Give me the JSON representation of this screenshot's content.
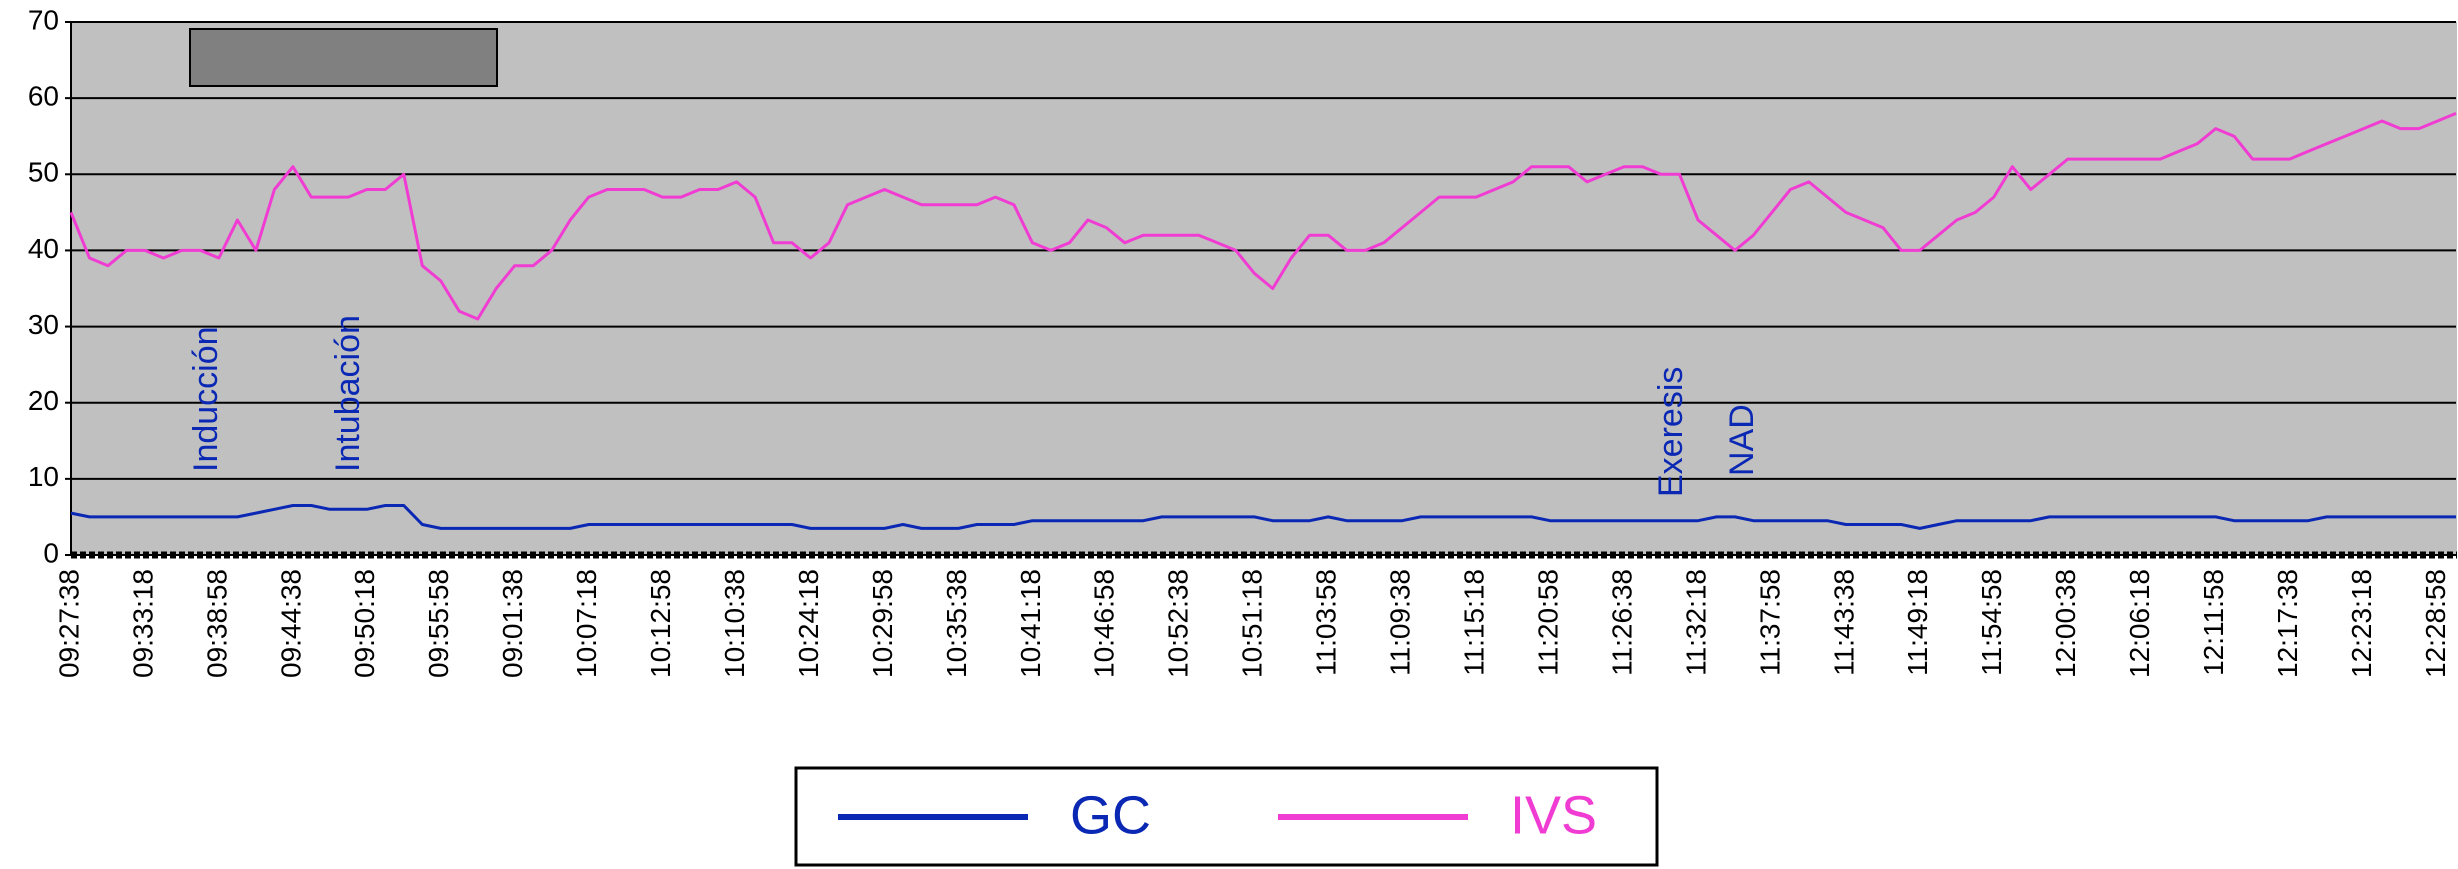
{
  "chart_data": {
    "type": "line",
    "categories": [
      "09:27:38",
      null,
      null,
      null,
      "09:33:18",
      null,
      null,
      null,
      "09:38:58",
      null,
      null,
      null,
      "09:44:38",
      null,
      null,
      null,
      "09:50:18",
      null,
      null,
      null,
      "09:55:58",
      null,
      null,
      null,
      "09:01:38",
      null,
      null,
      null,
      "10:07:18",
      null,
      null,
      null,
      "10:12:58",
      null,
      null,
      null,
      "10:10:38",
      null,
      null,
      null,
      "10:24:18",
      null,
      null,
      null,
      "10:29:58",
      null,
      null,
      null,
      "10:35:38",
      null,
      null,
      null,
      "10:41:18",
      null,
      null,
      null,
      "10:46:58",
      null,
      null,
      null,
      "10:52:38",
      null,
      null,
      null,
      "10:51:18",
      null,
      null,
      null,
      "11:03:58",
      null,
      null,
      null,
      "11:09:38",
      null,
      null,
      null,
      "11:15:18",
      null,
      null,
      null,
      "11:20:58",
      null,
      null,
      null,
      "11:26:38",
      null,
      null,
      null,
      "11:32:18",
      null,
      null,
      null,
      "11:37:58",
      null,
      null,
      null,
      "11:43:38",
      null,
      null,
      null,
      "11:49:18",
      null,
      null,
      null,
      "11:54:58",
      null,
      null,
      null,
      "12:00:38",
      null,
      null,
      null,
      "12:06:18",
      null,
      null,
      null,
      "12:11:58",
      null,
      null,
      null,
      "12:17:38",
      null,
      null,
      null,
      "12:23:18",
      null,
      null,
      null,
      "12:28:58",
      null
    ],
    "series": [
      {
        "name": "GC",
        "color": "#0a28b4",
        "values": [
          5.5,
          5,
          5,
          5,
          5,
          5,
          5,
          5,
          5,
          5,
          5.5,
          6,
          6.5,
          6.5,
          6,
          6,
          6,
          6.5,
          6.5,
          4,
          3.5,
          3.5,
          3.5,
          3.5,
          3.5,
          3.5,
          3.5,
          3.5,
          4,
          4,
          4,
          4,
          4,
          4,
          4,
          4,
          4,
          4,
          4,
          4,
          3.5,
          3.5,
          3.5,
          3.5,
          3.5,
          4,
          3.5,
          3.5,
          3.5,
          4,
          4,
          4,
          4.5,
          4.5,
          4.5,
          4.5,
          4.5,
          4.5,
          4.5,
          5,
          5,
          5,
          5,
          5,
          5,
          4.5,
          4.5,
          4.5,
          5,
          4.5,
          4.5,
          4.5,
          4.5,
          5,
          5,
          5,
          5,
          5,
          5,
          5,
          4.5,
          4.5,
          4.5,
          4.5,
          4.5,
          4.5,
          4.5,
          4.5,
          4.5,
          5,
          5,
          4.5,
          4.5,
          4.5,
          4.5,
          4.5,
          4,
          4,
          4,
          4,
          3.5,
          4,
          4.5,
          4.5,
          4.5,
          4.5,
          4.5,
          5,
          5,
          5,
          5,
          5,
          5,
          5,
          5,
          5,
          5,
          4.5,
          4.5,
          4.5,
          4.5,
          4.5,
          5,
          5,
          5,
          5,
          5,
          5,
          5,
          5
        ]
      },
      {
        "name": "IVS",
        "color": "#f03cd2",
        "values": [
          45,
          39,
          38,
          40,
          40,
          39,
          40,
          40,
          39,
          44,
          40,
          48,
          51,
          47,
          47,
          47,
          48,
          48,
          50,
          38,
          36,
          32,
          31,
          35,
          38,
          38,
          40,
          44,
          47,
          48,
          48,
          48,
          47,
          47,
          48,
          48,
          49,
          47,
          41,
          41,
          39,
          41,
          46,
          47,
          48,
          47,
          46,
          46,
          46,
          46,
          47,
          46,
          41,
          40,
          41,
          44,
          43,
          41,
          42,
          42,
          42,
          42,
          41,
          40,
          37,
          35,
          39,
          42,
          42,
          40,
          40,
          41,
          43,
          45,
          47,
          47,
          47,
          48,
          49,
          51,
          51,
          51,
          49,
          50,
          51,
          51,
          50,
          50,
          44,
          42,
          40,
          42,
          45,
          48,
          49,
          47,
          45,
          44,
          43,
          40,
          40,
          42,
          44,
          45,
          47,
          51,
          48,
          50,
          52,
          52,
          52,
          52,
          52,
          52,
          53,
          54,
          56,
          55,
          52,
          52,
          52,
          53,
          54,
          55,
          56,
          57,
          56,
          56,
          57,
          58
        ]
      }
    ],
    "annotations": [
      "Inducción",
      "Intubación",
      "Exeresis",
      "NAD"
    ],
    "ylim": [
      0,
      70
    ],
    "yticks": [
      0,
      10,
      20,
      30,
      40,
      50,
      60,
      70
    ],
    "grid": true,
    "legend": "bottom"
  }
}
